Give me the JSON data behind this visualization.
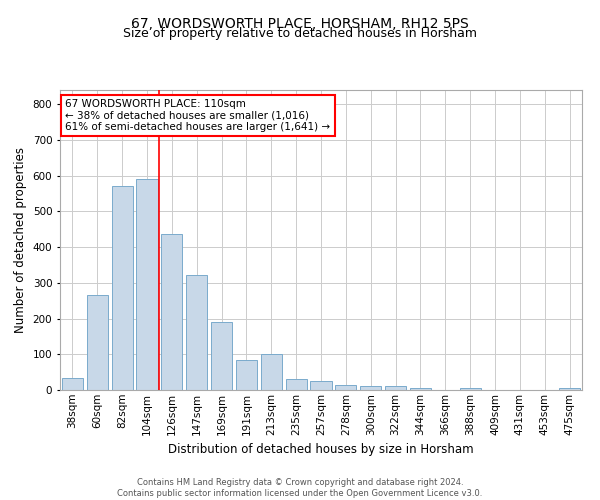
{
  "title": "67, WORDSWORTH PLACE, HORSHAM, RH12 5PS",
  "subtitle": "Size of property relative to detached houses in Horsham",
  "xlabel": "Distribution of detached houses by size in Horsham",
  "ylabel": "Number of detached properties",
  "categories": [
    "38sqm",
    "60sqm",
    "82sqm",
    "104sqm",
    "126sqm",
    "147sqm",
    "169sqm",
    "191sqm",
    "213sqm",
    "235sqm",
    "257sqm",
    "278sqm",
    "300sqm",
    "322sqm",
    "344sqm",
    "366sqm",
    "388sqm",
    "409sqm",
    "431sqm",
    "453sqm",
    "475sqm"
  ],
  "values": [
    33,
    267,
    570,
    590,
    437,
    322,
    190,
    85,
    100,
    32,
    26,
    15,
    12,
    10,
    7,
    1,
    5,
    0,
    0,
    0,
    5
  ],
  "bar_color": "#c8d8e8",
  "bar_edgecolor": "#7aaacc",
  "grid_color": "#cccccc",
  "vline_x_index": 3,
  "vline_color": "red",
  "annotation_text": "67 WORDSWORTH PLACE: 110sqm\n← 38% of detached houses are smaller (1,016)\n61% of semi-detached houses are larger (1,641) →",
  "annotation_box_color": "white",
  "annotation_box_edgecolor": "red",
  "ylim": [
    0,
    840
  ],
  "yticks": [
    0,
    100,
    200,
    300,
    400,
    500,
    600,
    700,
    800
  ],
  "footer_line1": "Contains HM Land Registry data © Crown copyright and database right 2024.",
  "footer_line2": "Contains public sector information licensed under the Open Government Licence v3.0.",
  "title_fontsize": 10,
  "subtitle_fontsize": 9,
  "tick_fontsize": 7.5,
  "ylabel_fontsize": 8.5,
  "xlabel_fontsize": 8.5,
  "annotation_fontsize": 7.5,
  "footer_fontsize": 6
}
